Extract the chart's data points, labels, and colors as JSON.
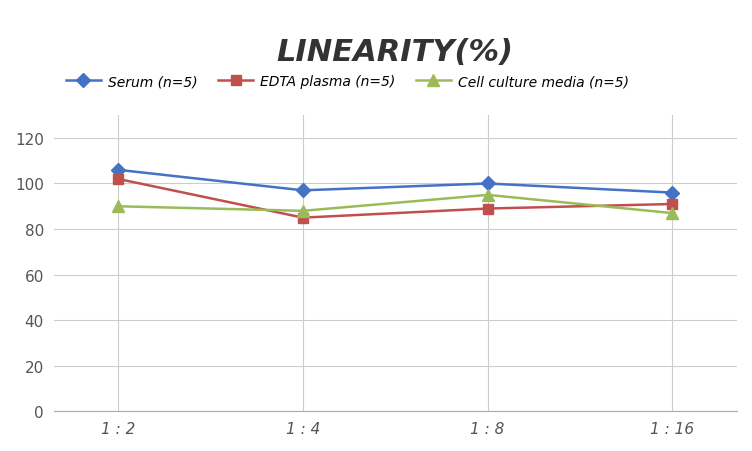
{
  "title": "LINEARITY(%)",
  "x_labels": [
    "1 : 2",
    "1 : 4",
    "1 : 8",
    "1 : 16"
  ],
  "x_positions": [
    0,
    1,
    2,
    3
  ],
  "series": [
    {
      "label": "Serum (n=5)",
      "values": [
        106,
        97,
        100,
        96
      ],
      "color": "#4472C4",
      "marker": "D",
      "markersize": 7,
      "linewidth": 1.8
    },
    {
      "label": "EDTA plasma (n=5)",
      "values": [
        102,
        85,
        89,
        91
      ],
      "color": "#C0504D",
      "marker": "s",
      "markersize": 7,
      "linewidth": 1.8
    },
    {
      "label": "Cell culture media (n=5)",
      "values": [
        90,
        88,
        95,
        87
      ],
      "color": "#9BBB59",
      "marker": "^",
      "markersize": 8,
      "linewidth": 1.8
    }
  ],
  "ylim": [
    0,
    130
  ],
  "yticks": [
    0,
    20,
    40,
    60,
    80,
    100,
    120
  ],
  "background_color": "#ffffff",
  "grid_color": "#cccccc",
  "title_fontsize": 22,
  "legend_fontsize": 10,
  "tick_fontsize": 11,
  "xlim": [
    -0.35,
    3.35
  ]
}
